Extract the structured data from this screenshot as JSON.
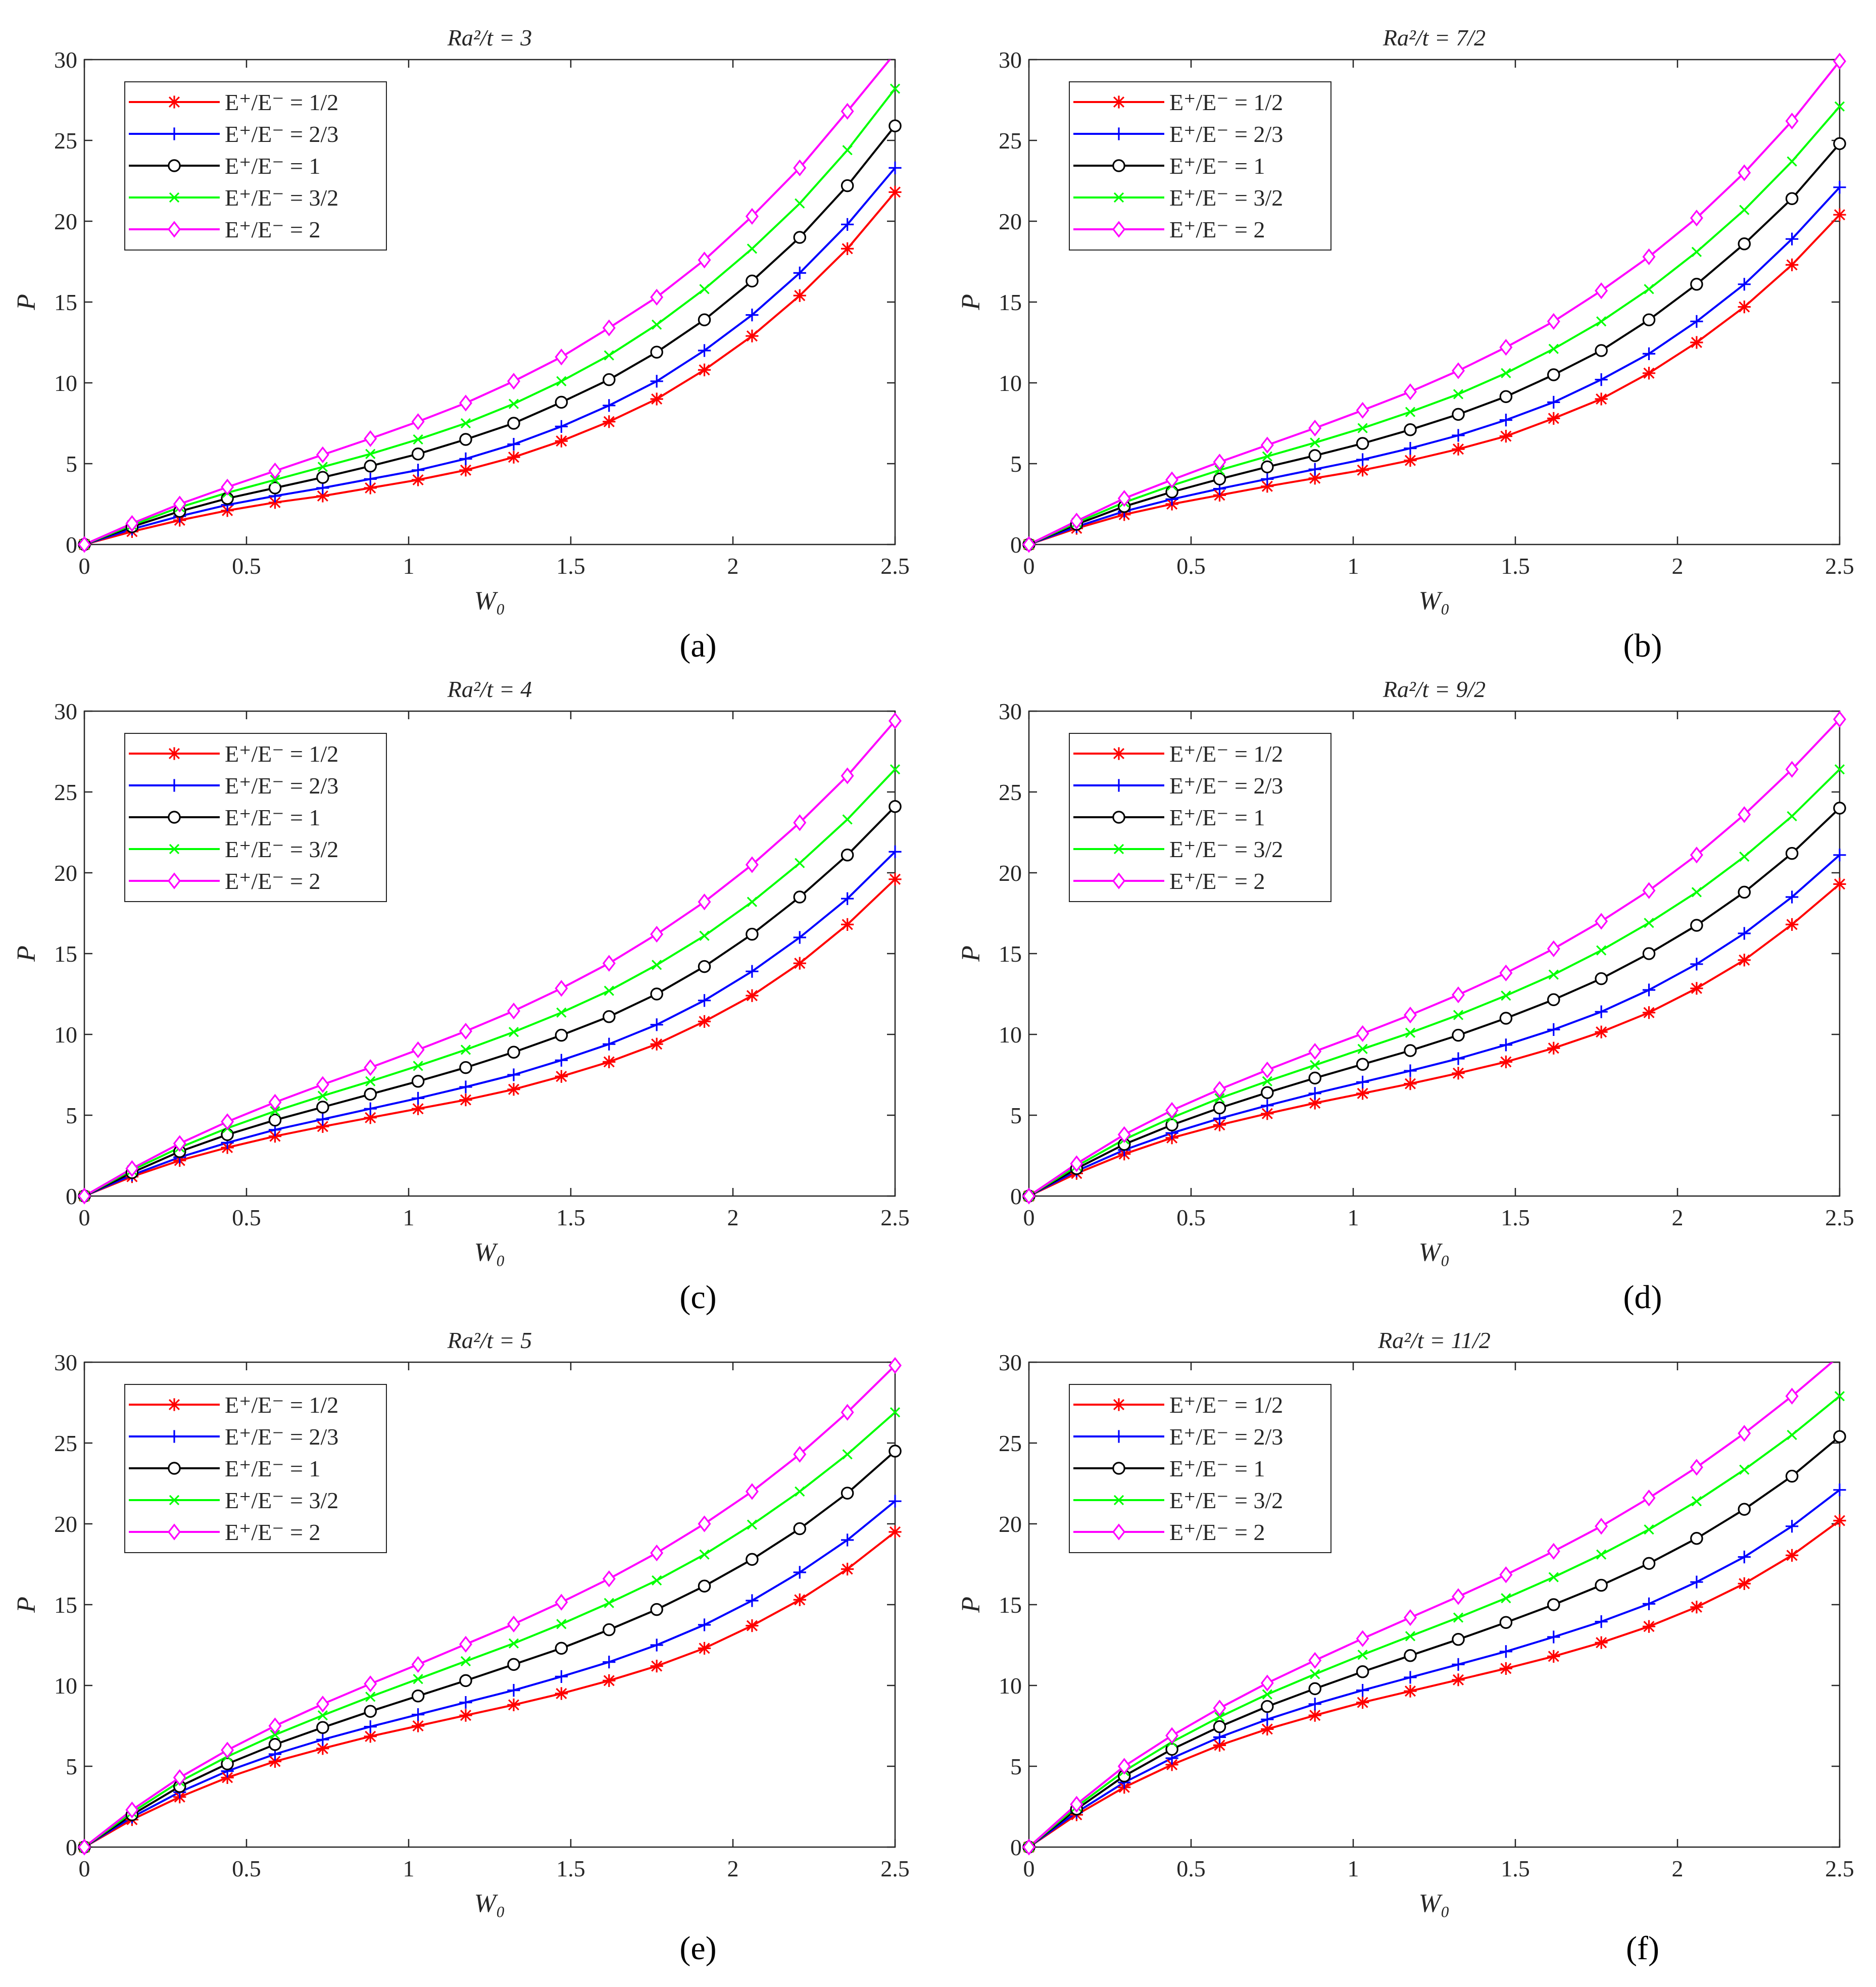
{
  "figure": {
    "series_styles": [
      {
        "key": "e_half",
        "color": "#ff0000",
        "marker": "asterisk"
      },
      {
        "key": "e_two_thirds",
        "color": "#0000ff",
        "marker": "plus"
      },
      {
        "key": "e_one",
        "color": "#000000",
        "marker": "circle"
      },
      {
        "key": "e_three_halves",
        "color": "#00ff00",
        "marker": "cross"
      },
      {
        "key": "e_two",
        "color": "#ff00ff",
        "marker": "diamond"
      }
    ],
    "legend_labels": [
      "E⁺/E⁻ = 1/2",
      "E⁺/E⁻ = 2/3",
      "E⁺/E⁻ = 1",
      "E⁺/E⁻ = 3/2",
      "E⁺/E⁻ = 2"
    ]
  },
  "chart_data": [
    {
      "panel_label": "(a)",
      "type": "line",
      "title": "Ra²/t = 3",
      "xlabel": "W₀",
      "ylabel": "P",
      "xlim": [
        0,
        2.5
      ],
      "ylim": [
        0,
        30
      ],
      "xticks": [
        "0",
        "0.5",
        "1",
        "1.5",
        "2",
        "2.5"
      ],
      "yticks": [
        "0",
        "5",
        "10",
        "15",
        "20",
        "25",
        "30"
      ],
      "legend_position": "top-left",
      "grid": false,
      "x": [
        0,
        0.147,
        0.294,
        0.441,
        0.588,
        0.735,
        0.882,
        1.029,
        1.176,
        1.324,
        1.471,
        1.618,
        1.765,
        1.912,
        2.059,
        2.206,
        2.353,
        2.5
      ],
      "series": [
        {
          "name": "E⁺/E⁻ = 1/2",
          "values": [
            0,
            0.8,
            1.5,
            2.1,
            2.6,
            3.0,
            3.5,
            4.0,
            4.6,
            5.4,
            6.4,
            7.6,
            9.0,
            10.8,
            12.9,
            15.4,
            18.3,
            21.8
          ]
        },
        {
          "name": "E⁺/E⁻ = 2/3",
          "values": [
            0,
            0.95,
            1.75,
            2.45,
            3.0,
            3.5,
            4.05,
            4.6,
            5.3,
            6.2,
            7.3,
            8.6,
            10.1,
            12.0,
            14.2,
            16.8,
            19.8,
            23.3
          ]
        },
        {
          "name": "E⁺/E⁻ = 1",
          "values": [
            0,
            1.1,
            2.05,
            2.85,
            3.5,
            4.15,
            4.85,
            5.6,
            6.5,
            7.5,
            8.8,
            10.2,
            11.9,
            13.9,
            16.3,
            19.0,
            22.2,
            25.9
          ]
        },
        {
          "name": "E⁺/E⁻ = 3/2",
          "values": [
            0,
            1.2,
            2.3,
            3.2,
            4.0,
            4.8,
            5.6,
            6.5,
            7.5,
            8.7,
            10.1,
            11.7,
            13.6,
            15.8,
            18.3,
            21.1,
            24.4,
            28.2
          ]
        },
        {
          "name": "E⁺/E⁻ = 2",
          "values": [
            0,
            1.3,
            2.5,
            3.55,
            4.55,
            5.55,
            6.55,
            7.6,
            8.75,
            10.1,
            11.6,
            13.4,
            15.3,
            17.6,
            20.3,
            23.3,
            26.8,
            30.4
          ]
        }
      ]
    },
    {
      "panel_label": "(b)",
      "type": "line",
      "title": "Ra²/t = 7/2",
      "xlabel": "W₀",
      "ylabel": "P",
      "xlim": [
        0,
        2.5
      ],
      "ylim": [
        0,
        30
      ],
      "xticks": [
        "0",
        "0.5",
        "1",
        "1.5",
        "2",
        "2.5"
      ],
      "yticks": [
        "0",
        "5",
        "10",
        "15",
        "20",
        "25",
        "30"
      ],
      "legend_position": "top-left",
      "grid": false,
      "x": [
        0,
        0.147,
        0.294,
        0.441,
        0.588,
        0.735,
        0.882,
        1.029,
        1.176,
        1.324,
        1.471,
        1.618,
        1.765,
        1.912,
        2.059,
        2.206,
        2.353,
        2.5
      ],
      "series": [
        {
          "name": "E⁺/E⁻ = 1/2",
          "values": [
            0,
            1.0,
            1.85,
            2.5,
            3.05,
            3.6,
            4.1,
            4.6,
            5.2,
            5.9,
            6.7,
            7.8,
            9.0,
            10.6,
            12.5,
            14.7,
            17.3,
            20.4
          ]
        },
        {
          "name": "E⁺/E⁻ = 2/3",
          "values": [
            0,
            1.1,
            2.05,
            2.8,
            3.45,
            4.05,
            4.65,
            5.25,
            5.95,
            6.75,
            7.7,
            8.8,
            10.2,
            11.8,
            13.8,
            16.1,
            18.9,
            22.1
          ]
        },
        {
          "name": "E⁺/E⁻ = 1",
          "values": [
            0,
            1.25,
            2.35,
            3.25,
            4.05,
            4.8,
            5.5,
            6.25,
            7.1,
            8.05,
            9.15,
            10.5,
            12.0,
            13.9,
            16.1,
            18.6,
            21.4,
            24.8
          ]
        },
        {
          "name": "E⁺/E⁻ = 3/2",
          "values": [
            0,
            1.35,
            2.6,
            3.65,
            4.6,
            5.45,
            6.3,
            7.2,
            8.2,
            9.3,
            10.6,
            12.1,
            13.8,
            15.8,
            18.1,
            20.7,
            23.7,
            27.1
          ]
        },
        {
          "name": "E⁺/E⁻ = 2",
          "values": [
            0,
            1.45,
            2.85,
            4.0,
            5.1,
            6.15,
            7.2,
            8.3,
            9.45,
            10.75,
            12.2,
            13.8,
            15.7,
            17.8,
            20.2,
            23.0,
            26.2,
            29.9
          ]
        }
      ]
    },
    {
      "panel_label": "(c)",
      "type": "line",
      "title": "Ra²/t = 4",
      "xlabel": "W₀",
      "ylabel": "P",
      "xlim": [
        0,
        2.5
      ],
      "ylim": [
        0,
        30
      ],
      "xticks": [
        "0",
        "0.5",
        "1",
        "1.5",
        "2",
        "2.5"
      ],
      "yticks": [
        "0",
        "5",
        "10",
        "15",
        "20",
        "25",
        "30"
      ],
      "legend_position": "top-left",
      "grid": false,
      "x": [
        0,
        0.147,
        0.294,
        0.441,
        0.588,
        0.735,
        0.882,
        1.029,
        1.176,
        1.324,
        1.471,
        1.618,
        1.765,
        1.912,
        2.059,
        2.206,
        2.353,
        2.5
      ],
      "series": [
        {
          "name": "E⁺/E⁻ = 1/2",
          "values": [
            0,
            1.2,
            2.2,
            3.0,
            3.7,
            4.3,
            4.85,
            5.4,
            5.95,
            6.6,
            7.4,
            8.3,
            9.4,
            10.8,
            12.4,
            14.4,
            16.8,
            19.6
          ]
        },
        {
          "name": "E⁺/E⁻ = 2/3",
          "values": [
            0,
            1.3,
            2.4,
            3.3,
            4.1,
            4.75,
            5.4,
            6.05,
            6.75,
            7.5,
            8.4,
            9.4,
            10.6,
            12.1,
            13.9,
            16.0,
            18.4,
            21.3
          ]
        },
        {
          "name": "E⁺/E⁻ = 1",
          "values": [
            0,
            1.45,
            2.75,
            3.8,
            4.7,
            5.5,
            6.3,
            7.1,
            7.95,
            8.9,
            9.95,
            11.1,
            12.5,
            14.2,
            16.2,
            18.5,
            21.1,
            24.1
          ]
        },
        {
          "name": "E⁺/E⁻ = 3/2",
          "values": [
            0,
            1.6,
            3.0,
            4.2,
            5.25,
            6.2,
            7.1,
            8.05,
            9.05,
            10.15,
            11.35,
            12.7,
            14.3,
            16.1,
            18.2,
            20.6,
            23.3,
            26.4
          ]
        },
        {
          "name": "E⁺/E⁻ = 2",
          "values": [
            0,
            1.7,
            3.25,
            4.6,
            5.8,
            6.9,
            7.95,
            9.05,
            10.2,
            11.45,
            12.85,
            14.4,
            16.2,
            18.2,
            20.5,
            23.1,
            26.0,
            29.4
          ]
        }
      ]
    },
    {
      "panel_label": "(d)",
      "type": "line",
      "title": "Ra²/t = 9/2",
      "xlabel": "W₀",
      "ylabel": "P",
      "xlim": [
        0,
        2.5
      ],
      "ylim": [
        0,
        30
      ],
      "xticks": [
        "0",
        "0.5",
        "1",
        "1.5",
        "2",
        "2.5"
      ],
      "yticks": [
        "0",
        "5",
        "10",
        "15",
        "20",
        "25",
        "30"
      ],
      "legend_position": "top-left",
      "grid": false,
      "x": [
        0,
        0.147,
        0.294,
        0.441,
        0.588,
        0.735,
        0.882,
        1.029,
        1.176,
        1.324,
        1.471,
        1.618,
        1.765,
        1.912,
        2.059,
        2.206,
        2.353,
        2.5
      ],
      "series": [
        {
          "name": "E⁺/E⁻ = 1/2",
          "values": [
            0,
            1.4,
            2.6,
            3.6,
            4.4,
            5.1,
            5.75,
            6.35,
            6.95,
            7.6,
            8.3,
            9.15,
            10.15,
            11.35,
            12.85,
            14.6,
            16.8,
            19.3
          ]
        },
        {
          "name": "E⁺/E⁻ = 2/3",
          "values": [
            0,
            1.55,
            2.85,
            3.9,
            4.8,
            5.6,
            6.35,
            7.05,
            7.75,
            8.5,
            9.35,
            10.3,
            11.4,
            12.75,
            14.35,
            16.25,
            18.5,
            21.1
          ]
        },
        {
          "name": "E⁺/E⁻ = 1",
          "values": [
            0,
            1.7,
            3.2,
            4.4,
            5.45,
            6.4,
            7.3,
            8.15,
            9.0,
            9.95,
            11.0,
            12.15,
            13.45,
            15.0,
            16.75,
            18.8,
            21.2,
            24.0
          ]
        },
        {
          "name": "E⁺/E⁻ = 3/2",
          "values": [
            0,
            1.85,
            3.5,
            4.85,
            6.05,
            7.1,
            8.1,
            9.1,
            10.1,
            11.2,
            12.4,
            13.7,
            15.2,
            16.9,
            18.8,
            21.0,
            23.5,
            26.4
          ]
        },
        {
          "name": "E⁺/E⁻ = 2",
          "values": [
            0,
            2.0,
            3.8,
            5.3,
            6.6,
            7.8,
            8.95,
            10.05,
            11.2,
            12.45,
            13.8,
            15.3,
            17.0,
            18.9,
            21.1,
            23.6,
            26.4,
            29.5
          ]
        }
      ]
    },
    {
      "panel_label": "(e)",
      "type": "line",
      "title": "Ra²/t = 5",
      "xlabel": "W₀",
      "ylabel": "P",
      "xlim": [
        0,
        2.5
      ],
      "ylim": [
        0,
        30
      ],
      "xticks": [
        "0",
        "0.5",
        "1",
        "1.5",
        "2",
        "2.5"
      ],
      "yticks": [
        "0",
        "5",
        "10",
        "15",
        "20",
        "25",
        "30"
      ],
      "legend_position": "top-left",
      "grid": false,
      "x": [
        0,
        0.147,
        0.294,
        0.441,
        0.588,
        0.735,
        0.882,
        1.029,
        1.176,
        1.324,
        1.471,
        1.618,
        1.765,
        1.912,
        2.059,
        2.206,
        2.353,
        2.5
      ],
      "series": [
        {
          "name": "E⁺/E⁻ = 1/2",
          "values": [
            0,
            1.7,
            3.1,
            4.3,
            5.3,
            6.1,
            6.85,
            7.5,
            8.15,
            8.8,
            9.5,
            10.3,
            11.2,
            12.3,
            13.7,
            15.3,
            17.2,
            19.5
          ]
        },
        {
          "name": "E⁺/E⁻ = 2/3",
          "values": [
            0,
            1.85,
            3.4,
            4.7,
            5.75,
            6.65,
            7.45,
            8.2,
            8.95,
            9.7,
            10.55,
            11.45,
            12.5,
            13.75,
            15.25,
            17.0,
            19.0,
            21.4
          ]
        },
        {
          "name": "E⁺/E⁻ = 1",
          "values": [
            0,
            2.0,
            3.75,
            5.15,
            6.35,
            7.4,
            8.4,
            9.35,
            10.3,
            11.3,
            12.3,
            13.45,
            14.7,
            16.15,
            17.8,
            19.7,
            21.9,
            24.5
          ]
        },
        {
          "name": "E⁺/E⁻ = 3/2",
          "values": [
            0,
            2.15,
            4.05,
            5.6,
            6.95,
            8.15,
            9.3,
            10.4,
            11.5,
            12.6,
            13.8,
            15.1,
            16.5,
            18.1,
            19.95,
            22.0,
            24.3,
            26.9
          ]
        },
        {
          "name": "E⁺/E⁻ = 2",
          "values": [
            0,
            2.3,
            4.3,
            6.0,
            7.5,
            8.85,
            10.1,
            11.3,
            12.55,
            13.8,
            15.15,
            16.6,
            18.2,
            20.0,
            22.0,
            24.3,
            26.9,
            29.8
          ]
        }
      ]
    },
    {
      "panel_label": "(f)",
      "type": "line",
      "title": "Ra²/t = 11/2",
      "xlabel": "W₀",
      "ylabel": "P",
      "xlim": [
        0,
        2.5
      ],
      "ylim": [
        0,
        30
      ],
      "xticks": [
        "0",
        "0.5",
        "1",
        "1.5",
        "2",
        "2.5"
      ],
      "yticks": [
        "0",
        "5",
        "10",
        "15",
        "20",
        "25",
        "30"
      ],
      "legend_position": "top-left",
      "grid": false,
      "x": [
        0,
        0.147,
        0.294,
        0.441,
        0.588,
        0.735,
        0.882,
        1.029,
        1.176,
        1.324,
        1.471,
        1.618,
        1.765,
        1.912,
        2.059,
        2.206,
        2.353,
        2.5
      ],
      "series": [
        {
          "name": "E⁺/E⁻ = 1/2",
          "values": [
            0,
            2.0,
            3.7,
            5.1,
            6.3,
            7.3,
            8.15,
            8.95,
            9.65,
            10.35,
            11.05,
            11.8,
            12.65,
            13.65,
            14.85,
            16.3,
            18.05,
            20.2
          ]
        },
        {
          "name": "E⁺/E⁻ = 2/3",
          "values": [
            0,
            2.15,
            4.0,
            5.5,
            6.8,
            7.9,
            8.85,
            9.7,
            10.5,
            11.3,
            12.1,
            13.0,
            13.95,
            15.05,
            16.4,
            17.95,
            19.85,
            22.1
          ]
        },
        {
          "name": "E⁺/E⁻ = 1",
          "values": [
            0,
            2.35,
            4.4,
            6.05,
            7.45,
            8.7,
            9.8,
            10.85,
            11.85,
            12.85,
            13.9,
            15.0,
            16.2,
            17.55,
            19.1,
            20.9,
            22.95,
            25.4
          ]
        },
        {
          "name": "E⁺/E⁻ = 3/2",
          "values": [
            0,
            2.5,
            4.7,
            6.5,
            8.05,
            9.45,
            10.7,
            11.9,
            13.05,
            14.2,
            15.4,
            16.7,
            18.1,
            19.65,
            21.4,
            23.35,
            25.5,
            27.9
          ]
        },
        {
          "name": "E⁺/E⁻ = 2",
          "values": [
            0,
            2.65,
            5.0,
            6.9,
            8.6,
            10.15,
            11.55,
            12.9,
            14.2,
            15.5,
            16.85,
            18.3,
            19.85,
            21.6,
            23.5,
            25.6,
            27.9,
            30.4
          ]
        }
      ]
    }
  ]
}
